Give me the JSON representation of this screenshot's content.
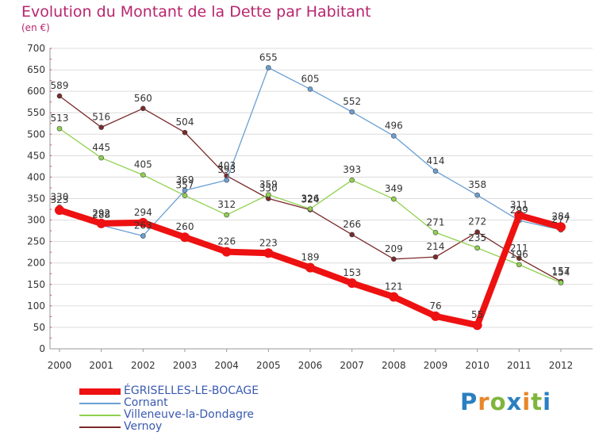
{
  "title": "Evolution du Montant de la Dette par Habitant",
  "subtitle": "(en €)",
  "brand": {
    "text": "Proxiti",
    "letter_colors": [
      "#2a7fc1",
      "#e8872a",
      "#7fb53c",
      "#2a7fc1",
      "#e8872a",
      "#7fb53c",
      "#2a7fc1"
    ]
  },
  "chart_data": {
    "type": "line",
    "x": [
      "2000",
      "2001",
      "2002",
      "2003",
      "2004",
      "2005",
      "2006",
      "2007",
      "2008",
      "2009",
      "2010",
      "2011",
      "2012"
    ],
    "ylim": [
      0,
      700
    ],
    "yticks": [
      "0",
      "50",
      "100",
      "150",
      "200",
      "250",
      "300",
      "350",
      "400",
      "450",
      "500",
      "550",
      "600",
      "650",
      "700"
    ],
    "grid": "horizontal",
    "legend_position": "bottom-left",
    "series": [
      {
        "name": "Vernoy",
        "color": "#7a2a2a",
        "values": [
          589,
          516,
          560,
          504,
          403,
          350,
          324,
          266,
          209,
          214,
          272,
          211,
          157
        ],
        "labels": [
          "589",
          "516",
          "560",
          "504",
          "403",
          "350",
          "324",
          "266",
          "209",
          "214",
          "272",
          "211",
          "157"
        ]
      },
      {
        "name": "Villeneuve-la-Dondagre",
        "color": "#8fd14f",
        "values": [
          513,
          445,
          405,
          357,
          312,
          359,
          326,
          393,
          349,
          271,
          235,
          196,
          154
        ],
        "labels": [
          "513",
          "445",
          "405",
          "357",
          "312",
          "359",
          "326",
          "393",
          "349",
          "271",
          "235",
          "196",
          "154"
        ]
      },
      {
        "name": "Cornant",
        "color": "#6a9fd3",
        "values": [
          330,
          288,
          263,
          369,
          393,
          655,
          605,
          552,
          496,
          414,
          358,
          299,
          277
        ],
        "labels": [
          "330",
          "288",
          "263",
          "369",
          "393",
          "655",
          "605",
          "552",
          "496",
          "414",
          "358",
          "299",
          "277"
        ]
      },
      {
        "name": "ÉGRISELLES-LE-BOCAGE",
        "color": "#ee1111",
        "values": [
          323,
          292,
          294,
          260,
          226,
          223,
          189,
          153,
          121,
          76,
          55,
          311,
          284
        ],
        "labels": [
          "323",
          "292",
          "294",
          "260",
          "226",
          "223",
          "189",
          "153",
          "121",
          "76",
          "55",
          "311",
          "284"
        ]
      }
    ]
  },
  "legend": [
    {
      "name": "ÉGRISELLES-LE-BOCAGE",
      "color": "#ee1111",
      "thickness": 8
    },
    {
      "name": "Cornant",
      "color": "#6a9fd3",
      "thickness": 2
    },
    {
      "name": "Villeneuve-la-Dondagre",
      "color": "#8fd14f",
      "thickness": 2
    },
    {
      "name": "Vernoy",
      "color": "#7a2a2a",
      "thickness": 2
    }
  ]
}
